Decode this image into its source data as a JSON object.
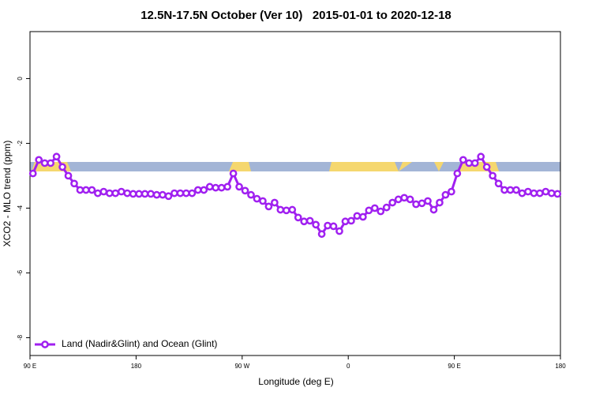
{
  "chart_data": {
    "type": "line",
    "title": "12.5N-17.5N October (Ver 10)   2015-01-01 to 2020-12-18",
    "x_label": "Longitude (deg E)",
    "y_label": "XCO2 - MLO trend (ppm)",
    "xlim": [
      90,
      540
    ],
    "xticks": [
      {
        "value": 90,
        "label": "90 E"
      },
      180,
      {
        "value": 270,
        "label": "90 W"
      },
      {
        "value": 360,
        "label": "0"
      },
      {
        "value": 450,
        "label": "90 E"
      },
      {
        "value": 540,
        "label": "180"
      }
    ],
    "ylim": [
      -8.55,
      1.45
    ],
    "yticks": [
      -8,
      -6,
      -4,
      -2,
      0
    ],
    "legend": "bottom-left",
    "x": [
      92.5,
      97.5,
      102.5,
      107.5,
      112.5,
      117.5,
      122.5,
      127.5,
      132.5,
      137.5,
      142.5,
      147.5,
      152.5,
      157.5,
      162.5,
      167.5,
      172.5,
      177.5,
      182.5,
      187.5,
      192.5,
      197.5,
      202.5,
      207.5,
      212.5,
      217.5,
      222.5,
      227.5,
      232.5,
      237.5,
      242.5,
      247.5,
      252.5,
      257.5,
      262.5,
      267.5,
      272.5,
      277.5,
      282.5,
      287.5,
      292.5,
      297.5,
      302.5,
      307.5,
      312.5,
      317.5,
      322.5,
      327.5,
      332.5,
      337.5,
      342.5,
      347.5,
      352.5,
      357.5,
      362.5,
      367.5,
      372.5,
      377.5,
      382.5,
      387.5,
      392.5,
      397.5,
      402.5,
      407.5,
      412.5,
      417.5,
      422.5,
      427.5,
      432.5,
      437.5,
      442.5,
      447.5,
      452.5,
      457.5,
      462.5,
      467.5,
      472.5,
      477.5,
      482.5,
      487.5,
      492.5,
      497.5,
      502.5,
      507.5,
      512.5,
      517.5,
      522.5,
      527.5,
      532.5,
      537.5
    ],
    "series": [
      {
        "name": "Land (Nadir&Glint) and Ocean (Glint)",
        "color": "#a020f0",
        "values": [
          -2.93,
          -2.51,
          -2.61,
          -2.61,
          -2.41,
          -2.73,
          -3.0,
          -3.24,
          -3.44,
          -3.44,
          -3.44,
          -3.54,
          -3.49,
          -3.54,
          -3.54,
          -3.49,
          -3.54,
          -3.56,
          -3.56,
          -3.56,
          -3.56,
          -3.59,
          -3.59,
          -3.63,
          -3.54,
          -3.54,
          -3.54,
          -3.54,
          -3.44,
          -3.44,
          -3.34,
          -3.37,
          -3.37,
          -3.34,
          -2.93,
          -3.34,
          -3.46,
          -3.59,
          -3.71,
          -3.78,
          -3.95,
          -3.83,
          -4.05,
          -4.07,
          -4.05,
          -4.29,
          -4.41,
          -4.39,
          -4.51,
          -4.8,
          -4.54,
          -4.56,
          -4.71,
          -4.41,
          -4.39,
          -4.24,
          -4.27,
          -4.07,
          -4.0,
          -4.1,
          -3.98,
          -3.83,
          -3.73,
          -3.68,
          -3.73,
          -3.88,
          -3.85,
          -3.78,
          -4.05,
          -3.83,
          -3.59,
          -3.49,
          -2.93,
          -2.51,
          -2.61,
          -2.61,
          -2.41,
          -2.73,
          -3.0,
          -3.24,
          -3.44,
          -3.44,
          -3.44,
          -3.54,
          -3.49,
          -3.54,
          -3.54,
          -3.49,
          -3.54,
          -3.56
        ]
      }
    ]
  }
}
